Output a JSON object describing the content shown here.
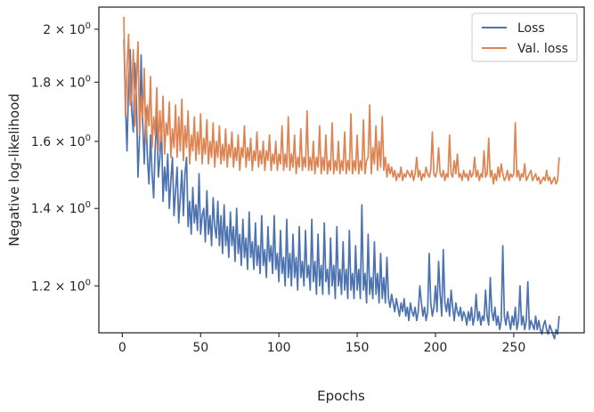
{
  "chart_data": {
    "type": "line",
    "title": "",
    "xlabel": "Epochs",
    "ylabel": "Negative log-likelihood",
    "yscale": "log",
    "xlim": [
      -15,
      295
    ],
    "ylim": [
      1.093,
      2.09
    ],
    "x_ticks": [
      {
        "value": 0,
        "label": "0"
      },
      {
        "value": 50,
        "label": "50"
      },
      {
        "value": 100,
        "label": "100"
      },
      {
        "value": 150,
        "label": "150"
      },
      {
        "value": 200,
        "label": "200"
      },
      {
        "value": 250,
        "label": "250"
      }
    ],
    "y_ticks": [
      {
        "value": 1.2,
        "mantissa": "1.2",
        "base": "10",
        "exp": "0"
      },
      {
        "value": 1.4,
        "mantissa": "1.4",
        "base": "10",
        "exp": "0"
      },
      {
        "value": 1.6,
        "mantissa": "1.6",
        "base": "10",
        "exp": "0"
      },
      {
        "value": 1.8,
        "mantissa": "1.8",
        "base": "10",
        "exp": "0"
      },
      {
        "value": 2.0,
        "mantissa": "2",
        "base": "10",
        "exp": "0"
      }
    ],
    "grid": false,
    "legend": "top-right",
    "legend_entries": [
      "Loss",
      "Val. loss"
    ],
    "colors": {
      "loss": "#4c72b0",
      "val_loss": "#dd8452"
    },
    "x_start": 1,
    "x_step": 1,
    "series": [
      {
        "name": "Loss",
        "color": "#4c72b0",
        "values": [
          1.96,
          1.72,
          1.57,
          1.8,
          1.92,
          1.7,
          1.63,
          1.87,
          1.74,
          1.49,
          1.62,
          1.9,
          1.66,
          1.53,
          1.71,
          1.55,
          1.47,
          1.62,
          1.5,
          1.43,
          1.58,
          1.68,
          1.49,
          1.55,
          1.65,
          1.42,
          1.52,
          1.45,
          1.56,
          1.4,
          1.48,
          1.55,
          1.38,
          1.45,
          1.52,
          1.36,
          1.43,
          1.51,
          1.38,
          1.5,
          1.55,
          1.35,
          1.42,
          1.33,
          1.46,
          1.36,
          1.41,
          1.34,
          1.5,
          1.33,
          1.38,
          1.4,
          1.31,
          1.45,
          1.33,
          1.38,
          1.3,
          1.43,
          1.35,
          1.32,
          1.42,
          1.3,
          1.38,
          1.28,
          1.41,
          1.3,
          1.35,
          1.27,
          1.39,
          1.3,
          1.35,
          1.26,
          1.4,
          1.28,
          1.33,
          1.25,
          1.37,
          1.27,
          1.32,
          1.24,
          1.39,
          1.27,
          1.31,
          1.24,
          1.36,
          1.25,
          1.3,
          1.23,
          1.38,
          1.25,
          1.29,
          1.22,
          1.35,
          1.26,
          1.3,
          1.23,
          1.38,
          1.24,
          1.28,
          1.21,
          1.34,
          1.23,
          1.27,
          1.2,
          1.37,
          1.22,
          1.28,
          1.2,
          1.33,
          1.22,
          1.27,
          1.19,
          1.35,
          1.22,
          1.26,
          1.2,
          1.34,
          1.22,
          1.25,
          1.19,
          1.37,
          1.21,
          1.26,
          1.18,
          1.33,
          1.2,
          1.25,
          1.18,
          1.36,
          1.21,
          1.24,
          1.18,
          1.32,
          1.2,
          1.25,
          1.17,
          1.35,
          1.2,
          1.24,
          1.18,
          1.31,
          1.19,
          1.24,
          1.17,
          1.34,
          1.19,
          1.23,
          1.17,
          1.3,
          1.19,
          1.24,
          1.17,
          1.41,
          1.19,
          1.23,
          1.16,
          1.33,
          1.18,
          1.22,
          1.17,
          1.31,
          1.18,
          1.23,
          1.16,
          1.28,
          1.17,
          1.22,
          1.16,
          1.27,
          1.17,
          1.15,
          1.18,
          1.16,
          1.14,
          1.17,
          1.15,
          1.13,
          1.16,
          1.14,
          1.17,
          1.13,
          1.15,
          1.12,
          1.16,
          1.14,
          1.13,
          1.15,
          1.12,
          1.14,
          1.2,
          1.16,
          1.13,
          1.15,
          1.12,
          1.14,
          1.28,
          1.16,
          1.13,
          1.15,
          1.2,
          1.14,
          1.26,
          1.18,
          1.13,
          1.29,
          1.16,
          1.14,
          1.17,
          1.13,
          1.19,
          1.15,
          1.12,
          1.16,
          1.14,
          1.13,
          1.15,
          1.12,
          1.14,
          1.13,
          1.11,
          1.14,
          1.12,
          1.15,
          1.11,
          1.13,
          1.18,
          1.12,
          1.14,
          1.11,
          1.13,
          1.12,
          1.19,
          1.13,
          1.11,
          1.22,
          1.14,
          1.12,
          1.15,
          1.11,
          1.13,
          1.1,
          1.12,
          1.3,
          1.13,
          1.11,
          1.14,
          1.12,
          1.1,
          1.13,
          1.11,
          1.15,
          1.1,
          1.12,
          1.2,
          1.11,
          1.13,
          1.1,
          1.12,
          1.21,
          1.1,
          1.12,
          1.11,
          1.1,
          1.13,
          1.1,
          1.12,
          1.1,
          1.09,
          1.11,
          1.12,
          1.1,
          1.09,
          1.11,
          1.1,
          1.09,
          1.08,
          1.1,
          1.09,
          1.13
        ]
      },
      {
        "name": "Val. loss",
        "color": "#dd8452",
        "values": [
          2.05,
          1.68,
          1.85,
          1.98,
          1.72,
          1.75,
          1.92,
          1.65,
          1.8,
          1.95,
          1.62,
          1.75,
          1.68,
          1.85,
          1.6,
          1.72,
          1.65,
          1.82,
          1.58,
          1.68,
          1.62,
          1.78,
          1.57,
          1.7,
          1.6,
          1.75,
          1.56,
          1.66,
          1.62,
          1.73,
          1.55,
          1.64,
          1.58,
          1.72,
          1.55,
          1.68,
          1.57,
          1.74,
          1.54,
          1.65,
          1.58,
          1.7,
          1.53,
          1.62,
          1.57,
          1.68,
          1.54,
          1.63,
          1.56,
          1.69,
          1.53,
          1.61,
          1.56,
          1.67,
          1.53,
          1.6,
          1.55,
          1.66,
          1.52,
          1.6,
          1.55,
          1.65,
          1.53,
          1.59,
          1.54,
          1.64,
          1.52,
          1.59,
          1.55,
          1.63,
          1.52,
          1.58,
          1.54,
          1.62,
          1.51,
          1.58,
          1.55,
          1.65,
          1.52,
          1.58,
          1.54,
          1.61,
          1.51,
          1.57,
          1.54,
          1.63,
          1.52,
          1.57,
          1.53,
          1.6,
          1.51,
          1.57,
          1.54,
          1.62,
          1.51,
          1.56,
          1.53,
          1.6,
          1.51,
          1.56,
          1.53,
          1.65,
          1.51,
          1.56,
          1.52,
          1.68,
          1.51,
          1.56,
          1.52,
          1.62,
          1.5,
          1.55,
          1.52,
          1.64,
          1.51,
          1.55,
          1.52,
          1.7,
          1.51,
          1.55,
          1.51,
          1.6,
          1.5,
          1.55,
          1.52,
          1.65,
          1.5,
          1.55,
          1.51,
          1.62,
          1.5,
          1.54,
          1.51,
          1.66,
          1.5,
          1.54,
          1.51,
          1.6,
          1.5,
          1.54,
          1.51,
          1.63,
          1.5,
          1.54,
          1.51,
          1.69,
          1.5,
          1.54,
          1.51,
          1.62,
          1.5,
          1.54,
          1.51,
          1.67,
          1.5,
          1.54,
          1.55,
          1.72,
          1.5,
          1.58,
          1.53,
          1.65,
          1.51,
          1.6,
          1.52,
          1.68,
          1.51,
          1.55,
          1.49,
          1.53,
          1.5,
          1.52,
          1.49,
          1.51,
          1.48,
          1.5,
          1.49,
          1.52,
          1.48,
          1.5,
          1.49,
          1.51,
          1.5,
          1.49,
          1.51,
          1.48,
          1.5,
          1.55,
          1.49,
          1.51,
          1.48,
          1.5,
          1.49,
          1.52,
          1.5,
          1.49,
          1.51,
          1.63,
          1.5,
          1.49,
          1.51,
          1.58,
          1.5,
          1.49,
          1.51,
          1.48,
          1.5,
          1.49,
          1.62,
          1.5,
          1.49,
          1.54,
          1.5,
          1.56,
          1.49,
          1.5,
          1.48,
          1.51,
          1.49,
          1.5,
          1.48,
          1.51,
          1.49,
          1.5,
          1.55,
          1.49,
          1.51,
          1.48,
          1.5,
          1.49,
          1.57,
          1.49,
          1.5,
          1.61,
          1.49,
          1.51,
          1.47,
          1.5,
          1.48,
          1.52,
          1.49,
          1.53,
          1.5,
          1.48,
          1.49,
          1.51,
          1.48,
          1.5,
          1.49,
          1.5,
          1.66,
          1.49,
          1.51,
          1.48,
          1.5,
          1.49,
          1.53,
          1.48,
          1.49,
          1.5,
          1.51,
          1.48,
          1.49,
          1.5,
          1.48,
          1.49,
          1.47,
          1.48,
          1.49,
          1.48,
          1.51,
          1.48,
          1.49,
          1.47,
          1.48,
          1.49,
          1.47,
          1.48,
          1.55
        ]
      }
    ]
  }
}
